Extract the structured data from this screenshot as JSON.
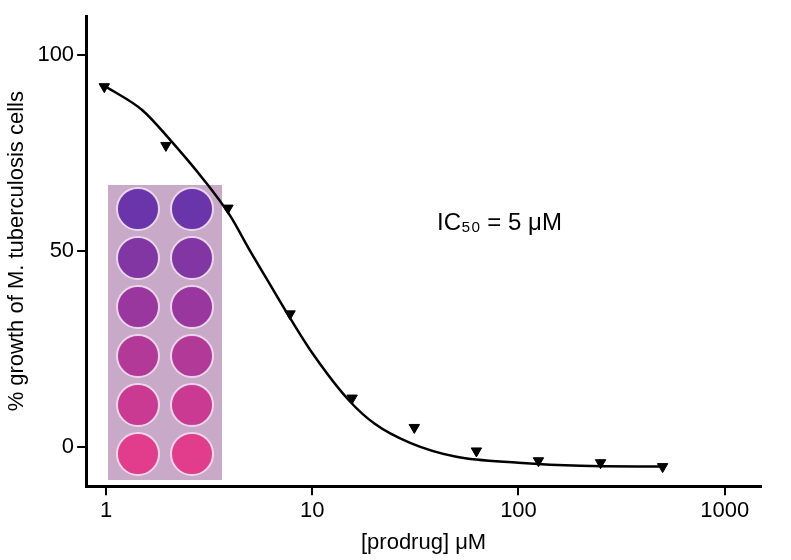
{
  "chart_data": {
    "type": "scatter",
    "x_label": "[prodrug] μM",
    "y_label": "% growth of M. tuberculosis cells",
    "annotations": [
      "IC₅₀ = 5 μM"
    ],
    "log": "x",
    "grid": false,
    "xlim": [
      0.8,
      1500
    ],
    "xticks": [
      1,
      10,
      100,
      1000
    ],
    "ylim": [
      -10,
      110
    ],
    "yticks": [
      0,
      50,
      100
    ],
    "series": [
      {
        "type": "scatter",
        "marker": "triangle_down",
        "color": "#000000",
        "x": [
          0.98,
          1.95,
          3.9,
          7.8,
          15.6,
          31.25,
          62.5,
          125,
          250,
          500
        ],
        "values": [
          92,
          77,
          61,
          34,
          12.5,
          5,
          -1,
          -3.5,
          -4,
          -5
        ]
      },
      {
        "type": "line",
        "line_style": "solid",
        "color": "#000000",
        "x": [
          1,
          1.5,
          2,
          3,
          4,
          5,
          6,
          8,
          10,
          15,
          20,
          30,
          50,
          100,
          200,
          500
        ],
        "values": [
          92,
          86,
          79,
          68,
          59,
          50,
          43,
          32,
          24,
          12,
          6,
          1,
          -2.5,
          -4,
          -4.8,
          -5
        ]
      }
    ]
  }
}
